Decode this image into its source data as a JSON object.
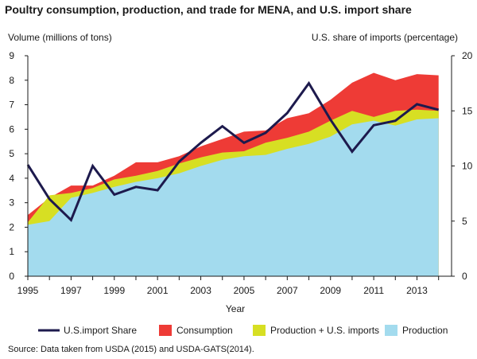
{
  "chart_data": {
    "type": "area",
    "title": "Poultry consumption, production, and trade for MENA, and U.S. import share",
    "ylabel": "Volume (millions of tons)",
    "y2label": "U.S. share of imports (percentage)",
    "xlabel": "Year",
    "source": "Source: Data taken from USDA (2015) and USDA-GATS(2014).",
    "ylim": [
      0,
      9
    ],
    "y2lim": [
      0,
      20
    ],
    "yticks": [
      "0",
      "1",
      "2",
      "3",
      "4",
      "5",
      "6",
      "7",
      "8",
      "9"
    ],
    "y2ticks": [
      "0",
      "5",
      "10",
      "15",
      "20"
    ],
    "xticks": [
      "1995",
      "1997",
      "1999",
      "2001",
      "2003",
      "2005",
      "2007",
      "2009",
      "2011",
      "2013"
    ],
    "x": [
      1995,
      1996,
      1997,
      1998,
      1999,
      2000,
      2001,
      2002,
      2003,
      2004,
      2005,
      2006,
      2007,
      2008,
      2009,
      2010,
      2011,
      2012,
      2013,
      2014
    ],
    "series": [
      {
        "name": "Consumption",
        "color": "#ee3b36",
        "axis": "left",
        "values": [
          2.5,
          3.2,
          3.7,
          3.7,
          4.1,
          4.65,
          4.65,
          4.9,
          5.3,
          5.6,
          5.9,
          5.95,
          6.45,
          6.65,
          7.2,
          7.9,
          8.3,
          8.0,
          8.25,
          8.2
        ]
      },
      {
        "name": "Production + U.S. imports",
        "color": "#d7df23",
        "axis": "left",
        "values": [
          2.2,
          3.3,
          3.4,
          3.6,
          3.95,
          4.1,
          4.3,
          4.6,
          4.85,
          5.05,
          5.1,
          5.45,
          5.65,
          5.9,
          6.35,
          6.75,
          6.5,
          6.75,
          6.8,
          6.75
        ]
      },
      {
        "name": "Production",
        "color": "#a3dbee",
        "axis": "left",
        "values": [
          2.1,
          2.25,
          3.2,
          3.4,
          3.65,
          3.85,
          4.0,
          4.2,
          4.5,
          4.75,
          4.9,
          4.95,
          5.2,
          5.4,
          5.7,
          6.2,
          6.35,
          6.15,
          6.4,
          6.45
        ]
      },
      {
        "name": "U.S.import Share",
        "color": "#1d1a4d",
        "axis": "right",
        "values": [
          10.1,
          7.0,
          5.1,
          10.0,
          7.4,
          8.1,
          7.8,
          10.4,
          12.1,
          13.6,
          12.1,
          13.0,
          14.8,
          17.5,
          14.2,
          11.3,
          13.7,
          14.1,
          15.6,
          15.1
        ]
      }
    ],
    "legend": {
      "placement": "bottom",
      "entries": [
        "U.S.import Share",
        "Consumption",
        "Production + U.S. imports",
        "Production"
      ]
    }
  }
}
